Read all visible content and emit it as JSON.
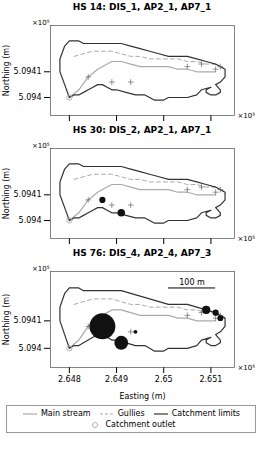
{
  "chart_data": [
    {
      "type": "line",
      "title": "HS 14: DIS_1, AP2_1, AP7_1",
      "ylabel": "Northing (m)",
      "xlim": [
        2.6476,
        2.6515
      ],
      "ylim": [
        5.09393,
        5.09428
      ],
      "xticks": [
        2.648,
        2.649,
        2.65,
        2.651
      ],
      "yticks": [
        5.094,
        5.0941
      ],
      "tick_labels": "y",
      "series": [
        {
          "name": "Main stream",
          "type": "line",
          "line_style": "solid",
          "color": "#aaaaaa",
          "x": [
            2.648,
            2.6482,
            2.6484,
            2.6486,
            2.6488,
            2.6489,
            2.6491,
            2.6493,
            2.6495,
            2.6497,
            2.6499,
            2.6501,
            2.6503,
            2.6505,
            2.6507,
            2.6509,
            2.6511
          ],
          "y": [
            5.094,
            5.09403,
            5.09408,
            5.09411,
            5.09413,
            5.09414,
            5.09414,
            5.09413,
            5.09412,
            5.09412,
            5.09412,
            5.09412,
            5.09411,
            5.09411,
            5.0941,
            5.0941,
            5.0941
          ]
        },
        {
          "name": "Gullies",
          "type": "line",
          "line_style": "dashed",
          "color": "#aaaaaa",
          "x": [
            2.6481,
            2.6483,
            2.6485,
            2.6487,
            2.6489,
            2.6491,
            2.6493,
            2.6495,
            2.6497,
            2.6499,
            2.6501,
            2.6503,
            2.6505,
            2.6507,
            2.6509,
            2.6511
          ],
          "y": [
            5.09416,
            5.09417,
            5.09418,
            5.09418,
            5.09418,
            5.09417,
            5.09416,
            5.09416,
            5.09415,
            5.09415,
            5.09415,
            5.09415,
            5.09414,
            5.09414,
            5.09413,
            5.09413
          ]
        },
        {
          "name": "Catchment limits",
          "type": "line",
          "line_style": "solid",
          "color": "#333333",
          "x": [
            2.648,
            2.6479,
            2.6478,
            2.6478,
            2.6479,
            2.648,
            2.6481,
            2.6482,
            2.6483,
            2.6485,
            2.6487,
            2.6489,
            2.6491,
            2.6493,
            2.6495,
            2.6497,
            2.6499,
            2.6501,
            2.6503,
            2.6505,
            2.6507,
            2.6509,
            2.6511,
            2.6512,
            2.6513,
            2.6513,
            2.6512,
            2.6511,
            2.6512,
            2.6512,
            2.6511,
            2.651,
            2.6509,
            2.6509,
            2.651,
            2.6508,
            2.6507,
            2.6505,
            2.6503,
            2.6501,
            2.65,
            2.6499,
            2.6498,
            2.6497,
            2.6496,
            2.6494,
            2.6492,
            2.649,
            2.6489,
            2.6488,
            2.6487,
            2.6486,
            2.6485,
            2.6484,
            2.6483,
            2.6482,
            2.6481,
            2.648,
            2.648
          ],
          "y": [
            5.094,
            5.09405,
            5.0941,
            5.09415,
            5.0942,
            5.09422,
            5.09422,
            5.09422,
            5.09421,
            5.09421,
            5.09421,
            5.09421,
            5.09421,
            5.0942,
            5.09419,
            5.09418,
            5.09417,
            5.09416,
            5.09416,
            5.09416,
            5.09415,
            5.09414,
            5.09413,
            5.09412,
            5.09411,
            5.09408,
            5.09406,
            5.09405,
            5.09403,
            5.09402,
            5.09401,
            5.09401,
            5.09402,
            5.09403,
            5.09404,
            5.09403,
            5.09401,
            5.094,
            5.094,
            5.094,
            5.09399,
            5.09399,
            5.09399,
            5.094,
            5.09401,
            5.09401,
            5.09402,
            5.09403,
            5.09403,
            5.09404,
            5.09405,
            5.09405,
            5.09404,
            5.09403,
            5.09402,
            5.09401,
            5.09401,
            5.094,
            5.094
          ]
        },
        {
          "name": "Catchment outlet",
          "type": "scatter",
          "marker": "circle_open",
          "color": "#aaaaaa",
          "x": [
            2.648
          ],
          "y": [
            5.094
          ]
        },
        {
          "type": "scatter",
          "marker": "plus",
          "color": "#666666",
          "x": [
            2.6484,
            2.6489,
            2.6493,
            2.6505,
            2.6508,
            2.6511,
            2.6512
          ],
          "y": [
            5.09408,
            5.09406,
            5.09406,
            5.09412,
            5.09413,
            5.09411,
            5.09412
          ]
        }
      ],
      "annotations": [
        {
          "text": "×10⁵",
          "axis": "x"
        },
        {
          "text": "×10⁵",
          "axis": "y"
        }
      ]
    },
    {
      "type": "line",
      "title": "HS 30: DIS_2, AP2_1, AP7_1",
      "ylabel": "Northing (m)",
      "xlim": [
        2.6476,
        2.6515
      ],
      "ylim": [
        5.09393,
        5.09428
      ],
      "xticks": [
        2.648,
        2.649,
        2.65,
        2.651
      ],
      "yticks": [
        5.094,
        5.0941
      ],
      "tick_labels": "y",
      "series": [
        {
          "name": "Main stream",
          "type": "line",
          "line_style": "solid",
          "color": "#aaaaaa",
          "x": [
            2.648,
            2.6482,
            2.6484,
            2.6486,
            2.6488,
            2.6489,
            2.6491,
            2.6493,
            2.6495,
            2.6497,
            2.6499,
            2.6501,
            2.6503,
            2.6505,
            2.6507,
            2.6509,
            2.6511
          ],
          "y": [
            5.094,
            5.09403,
            5.09408,
            5.09411,
            5.09413,
            5.09414,
            5.09414,
            5.09413,
            5.09412,
            5.09412,
            5.09412,
            5.09412,
            5.09411,
            5.09411,
            5.0941,
            5.0941,
            5.0941
          ]
        },
        {
          "name": "Gullies",
          "type": "line",
          "line_style": "dashed",
          "color": "#aaaaaa",
          "x": [
            2.6481,
            2.6483,
            2.6485,
            2.6487,
            2.6489,
            2.6491,
            2.6493,
            2.6495,
            2.6497,
            2.6499,
            2.6501,
            2.6503,
            2.6505,
            2.6507,
            2.6509,
            2.6511
          ],
          "y": [
            5.09416,
            5.09417,
            5.09418,
            5.09418,
            5.09418,
            5.09417,
            5.09416,
            5.09416,
            5.09415,
            5.09415,
            5.09415,
            5.09415,
            5.09414,
            5.09414,
            5.09413,
            5.09413
          ]
        },
        {
          "name": "Catchment limits",
          "type": "line",
          "line_style": "solid",
          "color": "#333333",
          "x": [
            2.648,
            2.6479,
            2.6478,
            2.6478,
            2.6479,
            2.648,
            2.6481,
            2.6482,
            2.6483,
            2.6485,
            2.6487,
            2.6489,
            2.6491,
            2.6493,
            2.6495,
            2.6497,
            2.6499,
            2.6501,
            2.6503,
            2.6505,
            2.6507,
            2.6509,
            2.6511,
            2.6512,
            2.6513,
            2.6513,
            2.6512,
            2.6511,
            2.6512,
            2.6512,
            2.6511,
            2.651,
            2.6509,
            2.6509,
            2.651,
            2.6508,
            2.6507,
            2.6505,
            2.6503,
            2.6501,
            2.65,
            2.6499,
            2.6498,
            2.6497,
            2.6496,
            2.6494,
            2.6492,
            2.649,
            2.6489,
            2.6488,
            2.6487,
            2.6486,
            2.6485,
            2.6484,
            2.6483,
            2.6482,
            2.6481,
            2.648,
            2.648
          ],
          "y": [
            5.094,
            5.09405,
            5.0941,
            5.09415,
            5.0942,
            5.09422,
            5.09422,
            5.09422,
            5.09421,
            5.09421,
            5.09421,
            5.09421,
            5.09421,
            5.0942,
            5.09419,
            5.09418,
            5.09417,
            5.09416,
            5.09416,
            5.09416,
            5.09415,
            5.09414,
            5.09413,
            5.09412,
            5.09411,
            5.09408,
            5.09406,
            5.09405,
            5.09403,
            5.09402,
            5.09401,
            5.09401,
            5.09402,
            5.09403,
            5.09404,
            5.09403,
            5.09401,
            5.094,
            5.094,
            5.094,
            5.09399,
            5.09399,
            5.09399,
            5.094,
            5.09401,
            5.09401,
            5.09402,
            5.09403,
            5.09403,
            5.09404,
            5.09405,
            5.09405,
            5.09404,
            5.09403,
            5.09402,
            5.09401,
            5.09401,
            5.094,
            5.094
          ]
        },
        {
          "name": "Catchment outlet",
          "type": "scatter",
          "marker": "circle_open",
          "color": "#aaaaaa",
          "x": [
            2.648
          ],
          "y": [
            5.094
          ]
        },
        {
          "type": "scatter",
          "marker": "plus",
          "color": "#666666",
          "x": [
            2.6484,
            2.6489,
            2.6493,
            2.6505,
            2.6508,
            2.6511,
            2.6512
          ],
          "y": [
            5.09408,
            5.09406,
            5.09406,
            5.09412,
            5.09413,
            5.09411,
            5.09412
          ]
        },
        {
          "type": "scatter",
          "marker": "circle",
          "color": "#111111",
          "x": [
            2.6487,
            2.6491
          ],
          "y": [
            5.09408,
            5.09403
          ],
          "sizes": [
            20,
            30
          ]
        }
      ],
      "annotations": [
        {
          "text": "×10⁵",
          "axis": "x"
        },
        {
          "text": "×10⁵",
          "axis": "y"
        }
      ]
    },
    {
      "type": "line",
      "title": "HS 76: DIS_4, AP2_4, AP7_3",
      "xlabel": "Easting (m)",
      "ylabel": "Northing (m)",
      "xlim": [
        2.6476,
        2.6515
      ],
      "ylim": [
        5.09393,
        5.09428
      ],
      "xticks": [
        2.648,
        2.649,
        2.65,
        2.651
      ],
      "yticks": [
        5.094,
        5.0941
      ],
      "legend": "bottom",
      "series": [
        {
          "name": "Main stream",
          "type": "line",
          "line_style": "solid",
          "color": "#aaaaaa",
          "x": [
            2.648,
            2.6482,
            2.6484,
            2.6486,
            2.6488,
            2.6489,
            2.6491,
            2.6493,
            2.6495,
            2.6497,
            2.6499,
            2.6501,
            2.6503,
            2.6505,
            2.6507,
            2.6509,
            2.6511
          ],
          "y": [
            5.094,
            5.09403,
            5.09408,
            5.09411,
            5.09413,
            5.09414,
            5.09414,
            5.09413,
            5.09412,
            5.09412,
            5.09412,
            5.09412,
            5.09411,
            5.09411,
            5.0941,
            5.0941,
            5.0941
          ]
        },
        {
          "name": "Gullies",
          "type": "line",
          "line_style": "dashed",
          "color": "#aaaaaa",
          "x": [
            2.6481,
            2.6483,
            2.6485,
            2.6487,
            2.6489,
            2.6491,
            2.6493,
            2.6495,
            2.6497,
            2.6499,
            2.6501,
            2.6503,
            2.6505,
            2.6507,
            2.6509,
            2.6511
          ],
          "y": [
            5.09416,
            5.09417,
            5.09418,
            5.09418,
            5.09418,
            5.09417,
            5.09416,
            5.09416,
            5.09415,
            5.09415,
            5.09415,
            5.09415,
            5.09414,
            5.09414,
            5.09413,
            5.09413
          ]
        },
        {
          "name": "Catchment limits",
          "type": "line",
          "line_style": "solid",
          "color": "#333333",
          "x": [
            2.648,
            2.6479,
            2.6478,
            2.6478,
            2.6479,
            2.648,
            2.6481,
            2.6482,
            2.6483,
            2.6485,
            2.6487,
            2.6489,
            2.6491,
            2.6493,
            2.6495,
            2.6497,
            2.6499,
            2.6501,
            2.6503,
            2.6505,
            2.6507,
            2.6509,
            2.6511,
            2.6512,
            2.6513,
            2.6513,
            2.6512,
            2.6511,
            2.6512,
            2.6512,
            2.6511,
            2.651,
            2.6509,
            2.6509,
            2.651,
            2.6508,
            2.6507,
            2.6505,
            2.6503,
            2.6501,
            2.65,
            2.6499,
            2.6498,
            2.6497,
            2.6496,
            2.6494,
            2.6492,
            2.649,
            2.6489,
            2.6488,
            2.6487,
            2.6486,
            2.6485,
            2.6484,
            2.6483,
            2.6482,
            2.6481,
            2.648,
            2.648
          ],
          "y": [
            5.094,
            5.09405,
            5.0941,
            5.09415,
            5.0942,
            5.09422,
            5.09422,
            5.09422,
            5.09421,
            5.09421,
            5.09421,
            5.09421,
            5.09421,
            5.0942,
            5.09419,
            5.09418,
            5.09417,
            5.09416,
            5.09416,
            5.09416,
            5.09415,
            5.09414,
            5.09413,
            5.09412,
            5.09411,
            5.09408,
            5.09406,
            5.09405,
            5.09403,
            5.09402,
            5.09401,
            5.09401,
            5.09402,
            5.09403,
            5.09404,
            5.09403,
            5.09401,
            5.094,
            5.094,
            5.094,
            5.09399,
            5.09399,
            5.09399,
            5.094,
            5.09401,
            5.09401,
            5.09402,
            5.09403,
            5.09403,
            5.09404,
            5.09405,
            5.09405,
            5.09404,
            5.09403,
            5.09402,
            5.09401,
            5.09401,
            5.094,
            5.094
          ]
        },
        {
          "name": "Catchment outlet",
          "type": "scatter",
          "marker": "circle_open",
          "color": "#aaaaaa",
          "x": [
            2.648
          ],
          "y": [
            5.094
          ]
        },
        {
          "type": "scatter",
          "marker": "plus",
          "color": "#666666",
          "x": [
            2.6484,
            2.6489,
            2.6493,
            2.6505,
            2.6508,
            2.6511,
            2.6512
          ],
          "y": [
            5.09408,
            5.09406,
            5.09406,
            5.09412,
            5.09413,
            5.09411,
            5.09412
          ]
        },
        {
          "type": "scatter",
          "marker": "circle",
          "color": "#111111",
          "x": [
            2.6487,
            2.6491,
            2.6494,
            2.6509,
            2.6511,
            2.6512
          ],
          "y": [
            5.09408,
            5.09402,
            5.09406,
            5.09414,
            5.09413,
            5.09411
          ],
          "sizes": [
            350,
            100,
            8,
            35,
            20,
            18
          ]
        }
      ],
      "annotations": [
        {
          "text": "×10⁵",
          "axis": "x"
        },
        {
          "text": "×10⁵",
          "axis": "y"
        },
        {
          "type": "scale_bar",
          "x": [
            2.6501,
            2.6511
          ],
          "y": 5.09422,
          "text": "100 m",
          "color": "#000000"
        }
      ]
    }
  ]
}
